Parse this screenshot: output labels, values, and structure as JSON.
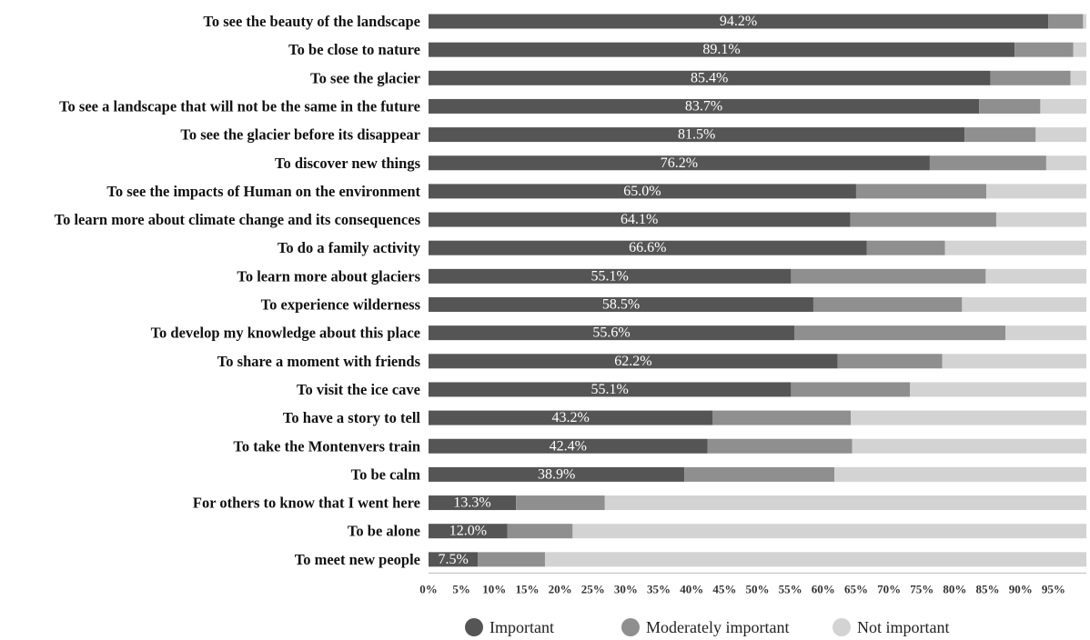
{
  "chart_data": {
    "type": "bar",
    "orientation": "horizontal",
    "stacked": true,
    "categories": [
      "To see the beauty of the landscape",
      "To be close to nature",
      "To see the glacier",
      "To see a landscape that will not be the same in the future",
      "To see the glacier before its disappear",
      "To discover new things",
      "To see the impacts of Human on the environment",
      "To learn more about climate change and its consequences",
      "To do a family activity",
      "To learn more about glaciers",
      "To experience wilderness",
      "To develop my knowledge about this place",
      "To share a moment with friends",
      "To visit the ice cave",
      "To have a story to tell",
      "To take the Montenvers train",
      "To be calm",
      "For others to know that I went here",
      "To be alone",
      "To meet new people"
    ],
    "series": [
      {
        "name": "Important",
        "color": "#555555",
        "values": [
          94.2,
          89.1,
          85.4,
          83.7,
          81.5,
          76.2,
          65.0,
          64.1,
          66.6,
          55.1,
          58.5,
          55.6,
          62.2,
          55.1,
          43.2,
          42.4,
          38.9,
          13.3,
          12.0,
          7.5
        ],
        "labels": [
          "94.2%",
          "89.1%",
          "85.4%",
          "83.7%",
          "81.5%",
          "76.2%",
          "65.0%",
          "64.1%",
          "66.6%",
          "55.1%",
          "58.5%",
          "55.6%",
          "62.2%",
          "55.1%",
          "43.2%",
          "42.4%",
          "38.9%",
          "13.3%",
          "12.0%",
          "7.5%"
        ]
      },
      {
        "name": "Moderately important",
        "color": "#8f8f8f",
        "values": [
          5.3,
          8.9,
          12.2,
          9.3,
          10.8,
          17.7,
          19.8,
          22.2,
          11.9,
          29.6,
          22.6,
          32.1,
          15.9,
          18.1,
          21.0,
          22.0,
          22.8,
          13.5,
          9.9,
          10.2
        ]
      },
      {
        "name": "Not important",
        "color": "#d3d3d3",
        "values": [
          0.5,
          2.0,
          2.4,
          7.0,
          7.7,
          6.1,
          15.2,
          13.7,
          21.5,
          15.3,
          18.9,
          12.3,
          21.9,
          26.8,
          35.8,
          35.6,
          38.3,
          73.2,
          78.1,
          82.3
        ]
      }
    ],
    "xlim": [
      0,
      100
    ],
    "xticks": [
      "0%",
      "5%",
      "10%",
      "15%",
      "20%",
      "25%",
      "30%",
      "35%",
      "40%",
      "45%",
      "50%",
      "55%",
      "60%",
      "65%",
      "70%",
      "75%",
      "80%",
      "85%",
      "90%",
      "95%"
    ],
    "grid": false,
    "legend_position": "bottom"
  }
}
